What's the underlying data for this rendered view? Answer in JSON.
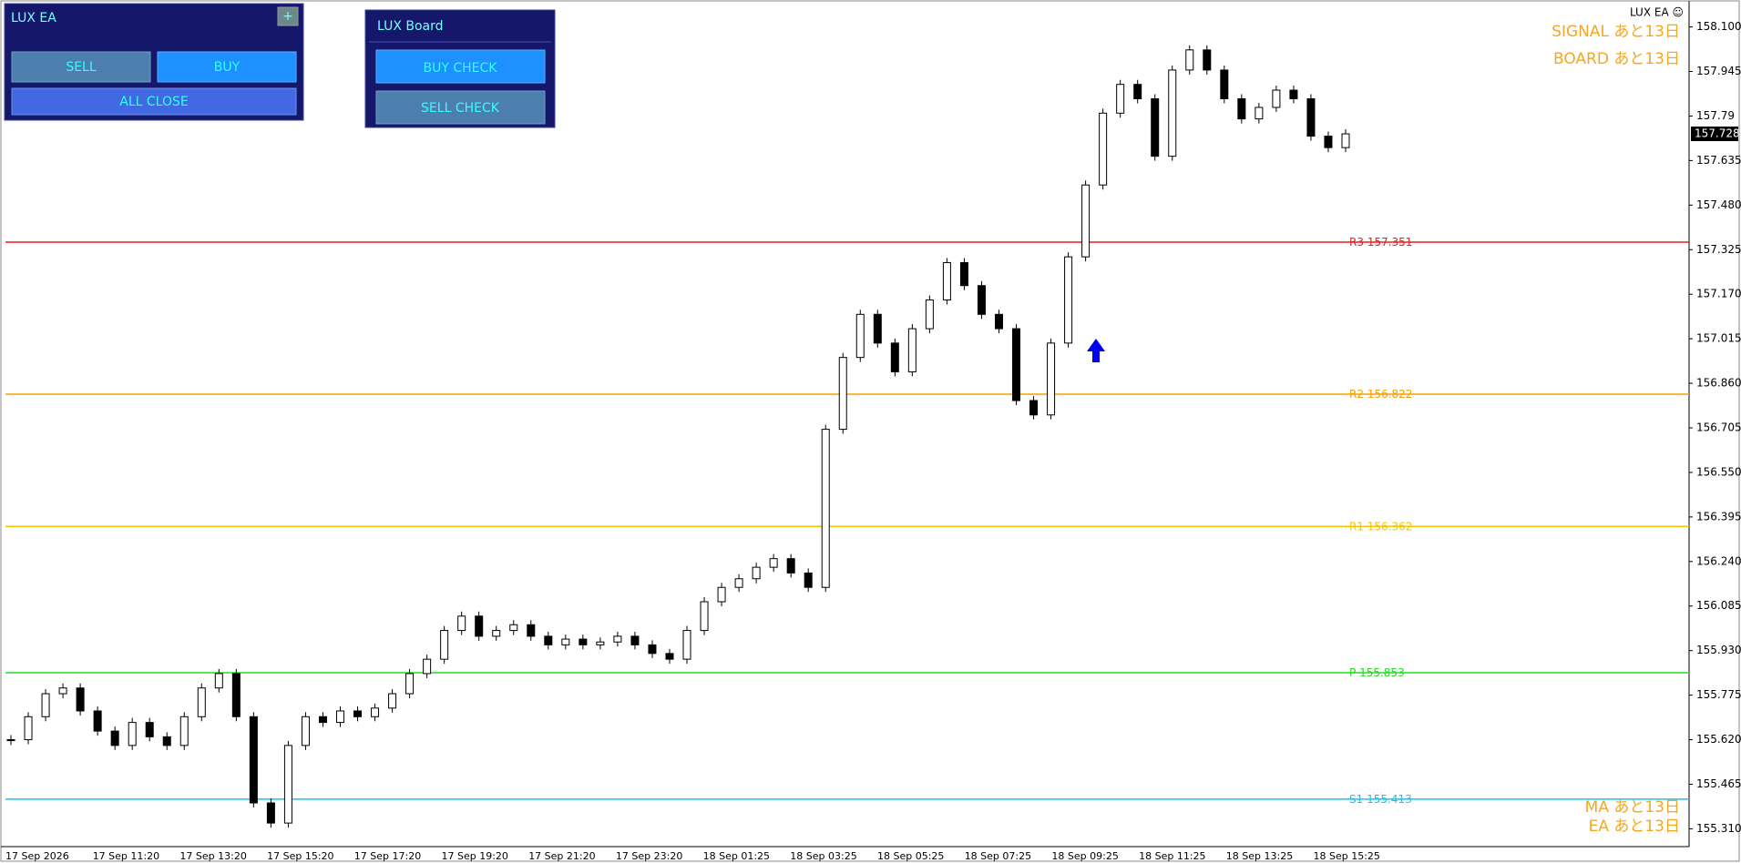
{
  "panels": [
    {
      "title": "LUX EA",
      "buttons": [
        "+",
        "SELL",
        "BUY",
        "ALL CLOSE"
      ]
    },
    {
      "title": "LUX Board",
      "buttons": [
        "BUY CHECK",
        "SELL CHECK"
      ]
    }
  ],
  "chart_data": {
    "type": "candlestick",
    "title": "LUX EA ☺",
    "annotations": [
      "SIGNAL あと13日",
      "BOARD あと13日",
      "MA あと13日",
      "EA あと13日"
    ],
    "values": [
      155.62,
      155.7,
      155.78,
      155.8,
      155.72,
      155.65,
      155.6,
      155.68,
      155.63,
      155.6,
      155.7,
      155.8,
      155.85,
      155.7,
      155.4,
      155.33,
      155.6,
      155.7,
      155.68,
      155.72,
      155.7,
      155.73,
      155.78,
      155.85,
      155.9,
      156.0,
      156.05,
      155.98,
      156.0,
      156.02,
      155.98,
      155.95,
      155.97,
      155.95,
      155.96,
      155.98,
      155.95,
      155.92,
      155.9,
      156.0,
      156.1,
      156.15,
      156.18,
      156.22,
      156.25,
      156.2,
      156.15,
      156.7,
      156.95,
      157.1,
      157.0,
      156.9,
      157.05,
      157.15,
      157.28,
      157.2,
      157.1,
      157.05,
      156.8,
      156.75,
      157.0,
      157.3,
      157.55,
      157.8,
      157.9,
      157.85,
      157.65,
      157.95,
      158.02,
      157.95,
      157.85,
      157.78,
      157.82,
      157.88,
      157.85,
      157.72,
      157.68,
      157.728
    ],
    "current_price": 157.728,
    "levels": [
      {
        "name": "R3",
        "value": 157.351,
        "color": "#e32020"
      },
      {
        "name": "R2",
        "value": 156.822,
        "color": "#f5a000"
      },
      {
        "name": "R1",
        "value": 156.362,
        "color": "#f5c400"
      },
      {
        "name": "P",
        "value": 155.853,
        "color": "#22dd22"
      },
      {
        "name": "S1",
        "value": 155.413,
        "color": "#20c0e8"
      }
    ],
    "ylim": [
      155.248,
      158.162
    ],
    "yticks": [
      {
        "value": 158.1,
        "label": "158.100"
      },
      157.945,
      157.79,
      157.635,
      {
        "value": 157.48,
        "label": "157.480"
      },
      157.325,
      {
        "value": 157.17,
        "label": "157.170"
      },
      157.015,
      {
        "value": 156.86,
        "label": "156.860"
      },
      156.705,
      {
        "value": 156.55,
        "label": "156.550"
      },
      156.395,
      {
        "value": 156.24,
        "label": "156.240"
      },
      156.085,
      {
        "value": 155.93,
        "label": "155.930"
      },
      155.775,
      {
        "value": 155.62,
        "label": "155.620"
      },
      155.465,
      {
        "value": 155.31,
        "label": "155.310"
      }
    ],
    "x_labels": [
      "17 Sep 2026",
      "17 Sep 11:20",
      "17 Sep 13:20",
      "17 Sep 15:20",
      "17 Sep 17:20",
      "17 Sep 19:20",
      "17 Sep 21:20",
      "17 Sep 23:20",
      "18 Sep 01:25",
      "18 Sep 03:25",
      "18 Sep 05:25",
      "18 Sep 07:25",
      "18 Sep 09:25",
      "18 Sep 11:25",
      "18 Sep 13:25",
      "18 Sep 15:25"
    ]
  }
}
